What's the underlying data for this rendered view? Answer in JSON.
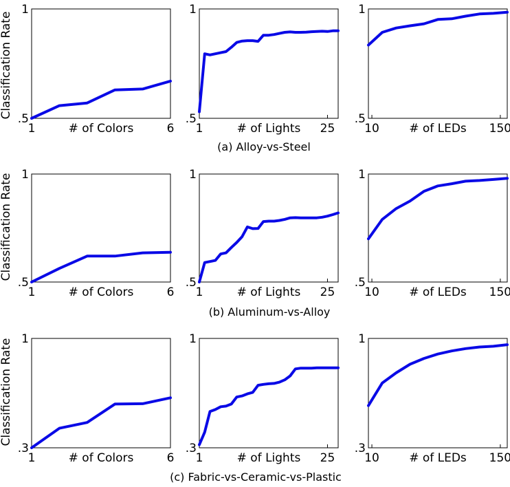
{
  "ylabel": "Classification Rate",
  "colors": {
    "series": "#0a0ae6",
    "axes": "#000000",
    "background": "#ffffff"
  },
  "rows": [
    {
      "caption": "(a) Alloy-vs-Steel"
    },
    {
      "caption": "(b) Aluminum-vs-Alloy"
    },
    {
      "caption": "(c) Fabric-vs-Ceramic-vs-Plastic"
    }
  ],
  "chart_data": [
    {
      "type": "line",
      "row": 0,
      "col": 0,
      "xlabel": "# of Colors",
      "xlim": [
        1,
        6
      ],
      "ylim": [
        0.5,
        1
      ],
      "xticks": [
        {
          "v": 1,
          "label": "1"
        },
        {
          "v": 6,
          "label": "6"
        }
      ],
      "yticks": [
        {
          "v": 0.5,
          "label": ".5"
        },
        {
          "v": 1,
          "label": "1"
        }
      ],
      "x": [
        1,
        2,
        3,
        4,
        5,
        6
      ],
      "y": [
        0.5,
        0.558,
        0.57,
        0.63,
        0.634,
        0.67
      ]
    },
    {
      "type": "line",
      "row": 0,
      "col": 1,
      "xlabel": "# of Lights",
      "xlim": [
        1,
        27
      ],
      "ylim": [
        0.5,
        1
      ],
      "xticks": [
        {
          "v": 1,
          "label": "1"
        },
        {
          "v": 25,
          "label": "25"
        }
      ],
      "yticks": [
        {
          "v": 0.5,
          "label": ".5"
        },
        {
          "v": 1,
          "label": "1"
        }
      ],
      "x": [
        1,
        2,
        3,
        4,
        5,
        6,
        7,
        8,
        9,
        10,
        11,
        12,
        13,
        14,
        15,
        16,
        17,
        18,
        19,
        20,
        21,
        22,
        23,
        24,
        25,
        26,
        27
      ],
      "y": [
        0.53,
        0.795,
        0.79,
        0.795,
        0.8,
        0.805,
        0.825,
        0.847,
        0.853,
        0.855,
        0.855,
        0.852,
        0.88,
        0.88,
        0.883,
        0.888,
        0.893,
        0.895,
        0.893,
        0.893,
        0.894,
        0.896,
        0.897,
        0.898,
        0.897,
        0.9,
        0.9
      ]
    },
    {
      "type": "line",
      "row": 0,
      "col": 2,
      "xlabel": "# of LEDs",
      "xlim": [
        0,
        10
      ],
      "ylim": [
        0.5,
        1
      ],
      "xticks": [
        {
          "v": 0.25,
          "label": "10"
        },
        {
          "v": 9.5,
          "label": "150"
        }
      ],
      "yticks": [
        {
          "v": 0.5,
          "label": ".5"
        },
        {
          "v": 1,
          "label": "1"
        }
      ],
      "x": [
        0,
        1,
        2,
        3,
        4,
        5,
        6,
        7,
        8,
        9,
        10
      ],
      "y": [
        0.835,
        0.893,
        0.913,
        0.923,
        0.932,
        0.952,
        0.955,
        0.967,
        0.977,
        0.98,
        0.985
      ]
    },
    {
      "type": "line",
      "row": 1,
      "col": 0,
      "xlabel": "# of Colors",
      "xlim": [
        1,
        6
      ],
      "ylim": [
        0.5,
        1
      ],
      "xticks": [
        {
          "v": 1,
          "label": "1"
        },
        {
          "v": 6,
          "label": "6"
        }
      ],
      "yticks": [
        {
          "v": 0.5,
          "label": ".5"
        },
        {
          "v": 1,
          "label": "1"
        }
      ],
      "x": [
        1,
        2,
        3,
        4,
        5,
        6
      ],
      "y": [
        0.5,
        0.563,
        0.62,
        0.62,
        0.635,
        0.638
      ]
    },
    {
      "type": "line",
      "row": 1,
      "col": 1,
      "xlabel": "# of Lights",
      "xlim": [
        1,
        27
      ],
      "ylim": [
        0.5,
        1
      ],
      "xticks": [
        {
          "v": 1,
          "label": "1"
        },
        {
          "v": 25,
          "label": "25"
        }
      ],
      "yticks": [
        {
          "v": 0.5,
          "label": ".5"
        },
        {
          "v": 1,
          "label": "1"
        }
      ],
      "x": [
        1,
        2,
        3,
        4,
        5,
        6,
        7,
        8,
        9,
        10,
        11,
        12,
        13,
        14,
        15,
        16,
        17,
        18,
        19,
        20,
        21,
        22,
        23,
        24,
        25,
        26,
        27
      ],
      "y": [
        0.5,
        0.59,
        0.595,
        0.6,
        0.63,
        0.635,
        0.66,
        0.683,
        0.71,
        0.755,
        0.747,
        0.748,
        0.78,
        0.782,
        0.782,
        0.785,
        0.79,
        0.797,
        0.798,
        0.797,
        0.797,
        0.797,
        0.797,
        0.8,
        0.805,
        0.812,
        0.82
      ]
    },
    {
      "type": "line",
      "row": 1,
      "col": 2,
      "xlabel": "# of LEDs",
      "xlim": [
        0,
        10
      ],
      "ylim": [
        0.5,
        1
      ],
      "xticks": [
        {
          "v": 0.25,
          "label": "10"
        },
        {
          "v": 9.5,
          "label": "150"
        }
      ],
      "yticks": [
        {
          "v": 0.5,
          "label": ".5"
        },
        {
          "v": 1,
          "label": "1"
        }
      ],
      "x": [
        0,
        1,
        2,
        3,
        4,
        5,
        6,
        7,
        8,
        9,
        10
      ],
      "y": [
        0.7,
        0.79,
        0.84,
        0.875,
        0.92,
        0.945,
        0.955,
        0.967,
        0.97,
        0.975,
        0.98
      ]
    },
    {
      "type": "line",
      "row": 2,
      "col": 0,
      "xlabel": "# of Colors",
      "xlim": [
        1,
        6
      ],
      "ylim": [
        0.3,
        1
      ],
      "xticks": [
        {
          "v": 1,
          "label": "1"
        },
        {
          "v": 6,
          "label": "6"
        }
      ],
      "yticks": [
        {
          "v": 0.3,
          "label": ".3"
        },
        {
          "v": 1,
          "label": "1"
        }
      ],
      "x": [
        1,
        2,
        3,
        4,
        5,
        6
      ],
      "y": [
        0.3,
        0.425,
        0.462,
        0.58,
        0.582,
        0.62
      ]
    },
    {
      "type": "line",
      "row": 2,
      "col": 1,
      "xlabel": "# of Lights",
      "xlim": [
        1,
        27
      ],
      "ylim": [
        0.3,
        1
      ],
      "xticks": [
        {
          "v": 1,
          "label": "1"
        },
        {
          "v": 25,
          "label": "25"
        }
      ],
      "yticks": [
        {
          "v": 0.3,
          "label": ".3"
        },
        {
          "v": 1,
          "label": "1"
        }
      ],
      "x": [
        1,
        2,
        3,
        4,
        5,
        6,
        7,
        8,
        9,
        10,
        11,
        12,
        13,
        14,
        15,
        16,
        17,
        18,
        19,
        20,
        21,
        22,
        23,
        24,
        25,
        26,
        27
      ],
      "y": [
        0.32,
        0.4,
        0.532,
        0.545,
        0.563,
        0.567,
        0.58,
        0.625,
        0.632,
        0.645,
        0.655,
        0.7,
        0.706,
        0.71,
        0.712,
        0.72,
        0.735,
        0.76,
        0.805,
        0.81,
        0.81,
        0.81,
        0.812,
        0.812,
        0.812,
        0.812,
        0.812
      ]
    },
    {
      "type": "line",
      "row": 2,
      "col": 2,
      "xlabel": "# of LEDs",
      "xlim": [
        0,
        10
      ],
      "ylim": [
        0.3,
        1
      ],
      "xticks": [
        {
          "v": 0.25,
          "label": "10"
        },
        {
          "v": 9.5,
          "label": "150"
        }
      ],
      "yticks": [
        {
          "v": 0.3,
          "label": ".3"
        },
        {
          "v": 1,
          "label": "1"
        }
      ],
      "x": [
        0,
        1,
        2,
        3,
        4,
        5,
        6,
        7,
        8,
        9,
        10
      ],
      "y": [
        0.57,
        0.715,
        0.78,
        0.835,
        0.872,
        0.9,
        0.92,
        0.935,
        0.945,
        0.95,
        0.96
      ]
    }
  ]
}
